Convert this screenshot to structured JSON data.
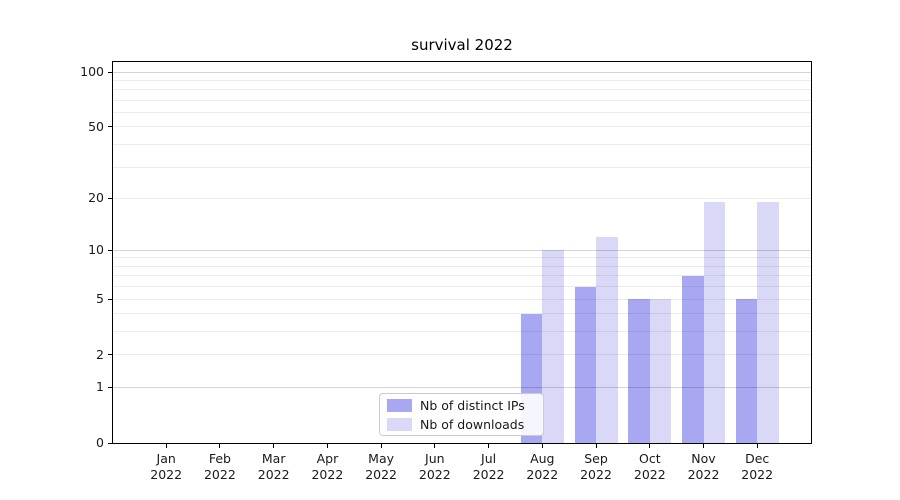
{
  "chart_data": {
    "type": "bar",
    "title": "survival 2022",
    "categories": [
      "Jan",
      "Feb",
      "Mar",
      "Apr",
      "May",
      "Jun",
      "Jul",
      "Aug",
      "Sep",
      "Oct",
      "Nov",
      "Dec"
    ],
    "tick_year": "2022",
    "series": [
      {
        "name": "Nb of distinct IPs",
        "color": "#a7a7f2",
        "values": [
          0,
          0,
          0,
          0,
          0,
          0,
          0,
          4,
          6,
          5,
          7,
          5
        ]
      },
      {
        "name": "Nb of downloads",
        "color": "#d9d9f7",
        "values": [
          0,
          0,
          0,
          0,
          0,
          0,
          0,
          10,
          12,
          5,
          19,
          19
        ]
      }
    ],
    "yscale": "log1p",
    "yticks": [
      0,
      1,
      2,
      5,
      10,
      20,
      50,
      100
    ],
    "ylim": [
      0,
      113.4
    ],
    "gridlines": {
      "major": [
        1,
        10,
        100
      ],
      "minor": [
        2,
        3,
        4,
        5,
        6,
        7,
        8,
        9,
        20,
        30,
        40,
        50,
        60,
        70,
        80,
        90
      ]
    },
    "grid": true,
    "legend_position": "lower center",
    "xlabel": "",
    "ylabel": ""
  },
  "colors": {
    "background": "#ffffff",
    "grid_major": "rgba(0,0,0,0.165)",
    "grid_minor": "rgba(0,0,0,0.075)",
    "spine": "#000000",
    "tick_text": "#1a1a1a"
  }
}
